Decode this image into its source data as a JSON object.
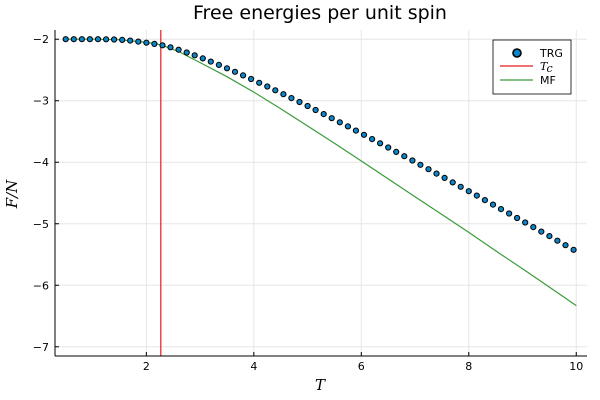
{
  "chart_data": {
    "type": "scatter",
    "title": "Free energies per unit spin",
    "xlabel": "T",
    "ylabel": "F/N",
    "xlim": [
      0.3,
      10.2
    ],
    "ylim": [
      -7.15,
      -1.85
    ],
    "xticks": [
      2,
      4,
      6,
      8,
      10
    ],
    "yticks": [
      -2,
      -3,
      -4,
      -5,
      -6,
      -7
    ],
    "xtick_labels": [
      "2",
      "4",
      "6",
      "8",
      "10"
    ],
    "ytick_labels": [
      "−2",
      "−3",
      "−4",
      "−5",
      "−6",
      "−7"
    ],
    "grid": true,
    "legend_position": "top-right",
    "colors": {
      "trg_fill": "#0b86c9",
      "trg_edge": "#000000",
      "tc_line": "#e31a1c",
      "mf_line": "#3a9a3a",
      "axis": "#000000"
    },
    "series": [
      {
        "name": "TRG",
        "kind": "scatter",
        "x": [
          0.5,
          0.65,
          0.8,
          0.95,
          1.1,
          1.25,
          1.4,
          1.55,
          1.7,
          1.85,
          2.0,
          2.15,
          2.3,
          2.45,
          2.6,
          2.75,
          2.9,
          3.05,
          3.2,
          3.35,
          3.5,
          3.65,
          3.8,
          3.95,
          4.1,
          4.25,
          4.4,
          4.55,
          4.7,
          4.85,
          5.0,
          5.15,
          5.3,
          5.45,
          5.6,
          5.75,
          5.9,
          6.05,
          6.2,
          6.35,
          6.5,
          6.65,
          6.8,
          6.95,
          7.1,
          7.25,
          7.4,
          7.55,
          7.7,
          7.85,
          8.0,
          8.15,
          8.3,
          8.45,
          8.6,
          8.75,
          8.9,
          9.05,
          9.2,
          9.35,
          9.5,
          9.65,
          9.8,
          9.95
        ],
        "y": [
          -2.0,
          -2.0,
          -2.0,
          -2.0,
          -2.0,
          -2.001,
          -2.004,
          -2.011,
          -2.022,
          -2.038,
          -2.057,
          -2.076,
          -2.098,
          -2.131,
          -2.171,
          -2.215,
          -2.262,
          -2.311,
          -2.363,
          -2.417,
          -2.473,
          -2.53,
          -2.588,
          -2.647,
          -2.708,
          -2.769,
          -2.831,
          -2.894,
          -2.957,
          -3.021,
          -3.086,
          -3.151,
          -3.217,
          -3.284,
          -3.351,
          -3.418,
          -3.486,
          -3.554,
          -3.623,
          -3.692,
          -3.761,
          -3.831,
          -3.901,
          -3.971,
          -4.042,
          -4.113,
          -4.184,
          -4.255,
          -4.327,
          -4.399,
          -4.471,
          -4.543,
          -4.616,
          -4.688,
          -4.761,
          -4.834,
          -4.907,
          -4.98,
          -5.054,
          -5.128,
          -5.201,
          -5.275,
          -5.349,
          -5.423
        ]
      },
      {
        "name": "T_c",
        "label_display": "T",
        "label_subscript": "c",
        "kind": "vline",
        "x": 2.269
      },
      {
        "name": "MF",
        "kind": "line",
        "x": [
          0.5,
          1.0,
          1.5,
          2.0,
          2.2,
          2.3,
          2.6,
          3.0,
          3.5,
          4.0,
          4.5,
          5.0,
          5.5,
          6.0,
          6.5,
          7.0,
          7.5,
          8.0,
          8.5,
          9.0,
          9.5,
          10.0
        ],
        "y": [
          -2.0,
          -2.0,
          -2.01,
          -2.05,
          -2.08,
          -2.1,
          -2.2,
          -2.38,
          -2.61,
          -2.86,
          -3.13,
          -3.41,
          -3.69,
          -3.98,
          -4.27,
          -4.56,
          -4.85,
          -5.14,
          -5.44,
          -5.73,
          -6.03,
          -6.33
        ]
      }
    ]
  }
}
